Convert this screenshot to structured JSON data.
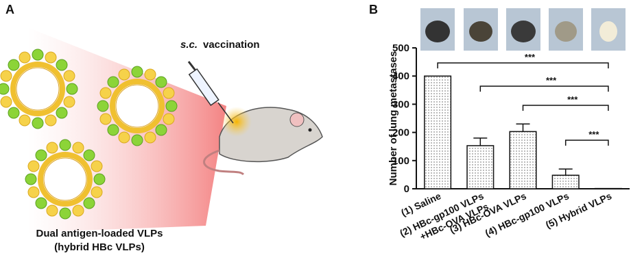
{
  "panel_a": {
    "label": "A",
    "route": "s.c.",
    "method": "vaccination",
    "caption_line1": "Dual antigen-loaded VLPs",
    "caption_line2": "(hybrid HBc VLPs)"
  },
  "chart_data": {
    "type": "bar",
    "panel_label": "B",
    "ylabel": "Number of lung metastases",
    "categories": [
      "(1) Saline",
      "(2) HBc-gp100 VLPs\n+HBc-OVA VLPs",
      "(3) HBc-OVA VLPs",
      "(4) HBc-gp100 VLPs",
      "(5) Hybrid VLPs"
    ],
    "values": [
      400,
      153,
      203,
      48,
      1
    ],
    "errors": [
      0,
      27,
      27,
      22,
      0
    ],
    "ylim": [
      0,
      500
    ],
    "yticks": [
      0,
      100,
      200,
      300,
      400,
      500
    ],
    "significance": [
      {
        "from": 0,
        "to": 4,
        "label": "***"
      },
      {
        "from": 1,
        "to": 4,
        "label": "***"
      },
      {
        "from": 2,
        "to": 4,
        "label": "***"
      },
      {
        "from": 3,
        "to": 4,
        "label": "***"
      }
    ]
  }
}
